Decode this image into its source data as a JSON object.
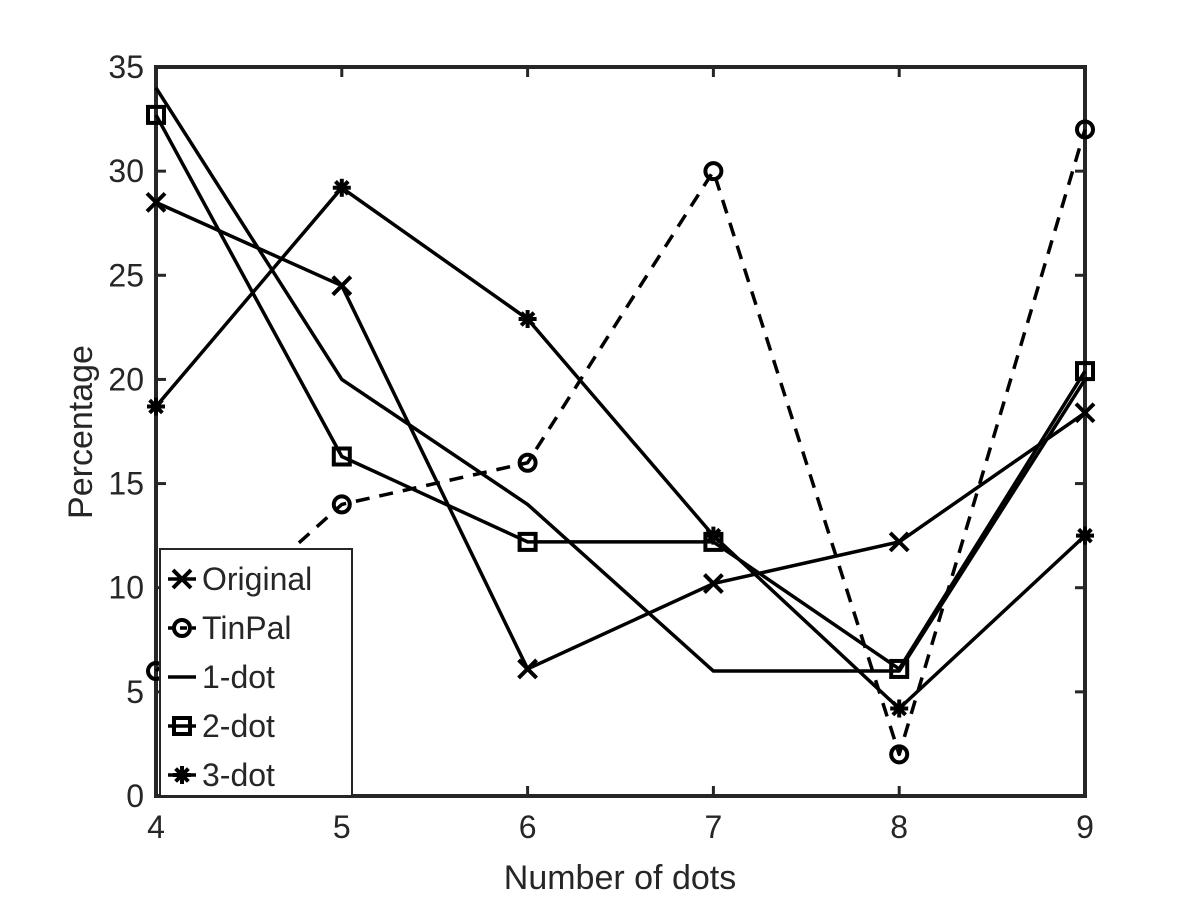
{
  "chart_data": {
    "type": "line",
    "title": "",
    "xlabel": "Number of dots",
    "ylabel": "Percentage",
    "x": [
      4,
      5,
      6,
      7,
      8,
      9
    ],
    "xlim": [
      4,
      9
    ],
    "ylim": [
      0,
      35
    ],
    "xticks": [
      "4",
      "5",
      "6",
      "7",
      "8",
      "9"
    ],
    "yticks": [
      "0",
      "5",
      "10",
      "15",
      "20",
      "25",
      "30",
      "35"
    ],
    "grid": false,
    "legend_position": "bottom-left",
    "series": [
      {
        "name": "Original",
        "marker": "x",
        "dash": "solid",
        "values": [
          28.5,
          24.5,
          6.1,
          10.2,
          12.2,
          18.4
        ]
      },
      {
        "name": "TinPal",
        "marker": "o",
        "dash": "dashed",
        "values": [
          6.0,
          14.0,
          16.0,
          30.0,
          2.0,
          32.0
        ]
      },
      {
        "name": "1-dot",
        "marker": "none",
        "dash": "solid",
        "values": [
          34.0,
          20.0,
          14.0,
          6.0,
          6.0,
          20.0
        ]
      },
      {
        "name": "2-dot",
        "marker": "square",
        "dash": "solid",
        "values": [
          32.7,
          16.3,
          12.2,
          12.2,
          6.1,
          20.4
        ]
      },
      {
        "name": "3-dot",
        "marker": "star",
        "dash": "solid",
        "values": [
          18.7,
          29.2,
          22.9,
          12.5,
          4.2,
          12.5
        ]
      }
    ]
  }
}
